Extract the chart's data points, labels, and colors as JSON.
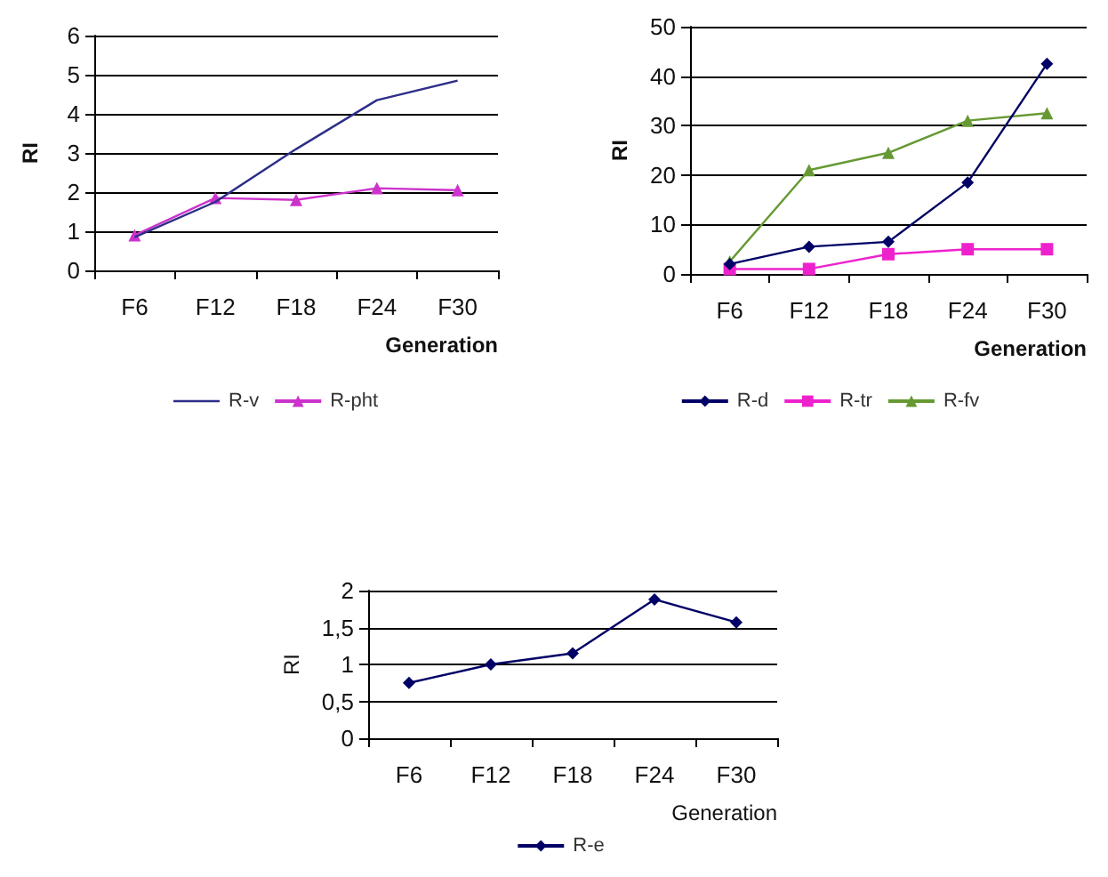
{
  "chart_data": [
    {
      "type": "line",
      "xlabel": "Generation",
      "ylabel": "RI",
      "categories": [
        "F6",
        "F12",
        "F18",
        "F24",
        "F30"
      ],
      "ylim": [
        0,
        6
      ],
      "yticks": [
        0,
        1,
        2,
        3,
        4,
        5,
        6
      ],
      "grid": "y",
      "legend": "bottom",
      "series": [
        {
          "name": "R-v",
          "color": "#2e2e8a",
          "marker": "none",
          "values": [
            0.85,
            1.75,
            3.1,
            4.35,
            4.85
          ]
        },
        {
          "name": "R-pht",
          "color": "#cc33cc",
          "marker": "triangle",
          "values": [
            0.9,
            1.85,
            1.8,
            2.1,
            2.05
          ]
        }
      ]
    },
    {
      "type": "line",
      "xlabel": "Generation",
      "ylabel": "RI",
      "categories": [
        "F6",
        "F12",
        "F18",
        "F24",
        "F30"
      ],
      "ylim": [
        0,
        50
      ],
      "yticks": [
        0,
        10,
        20,
        30,
        40,
        50
      ],
      "grid": "y",
      "legend": "bottom",
      "series": [
        {
          "name": "R-d",
          "color": "#000066",
          "marker": "diamond",
          "values": [
            2,
            5.5,
            6.5,
            18.5,
            42.5
          ]
        },
        {
          "name": "R-tr",
          "color": "#ee22cc",
          "marker": "square",
          "values": [
            1,
            1,
            4,
            5,
            5
          ]
        },
        {
          "name": "R-fv",
          "color": "#669933",
          "marker": "triangle",
          "values": [
            2.5,
            21,
            24.5,
            31,
            32.5
          ]
        }
      ]
    },
    {
      "type": "line",
      "xlabel": "Generation",
      "ylabel": "RI",
      "categories": [
        "F6",
        "F12",
        "F18",
        "F24",
        "F30"
      ],
      "ylim": [
        0,
        2
      ],
      "yticks": [
        0,
        {
          "value": 0.5,
          "label": "0,5"
        },
        1,
        {
          "value": 1.5,
          "label": "1,5"
        },
        2
      ],
      "grid": "y",
      "legend": "bottom",
      "series": [
        {
          "name": "R-e",
          "color": "#000066",
          "marker": "diamond",
          "values": [
            0.75,
            1,
            1.15,
            1.88,
            1.57
          ]
        }
      ]
    }
  ]
}
